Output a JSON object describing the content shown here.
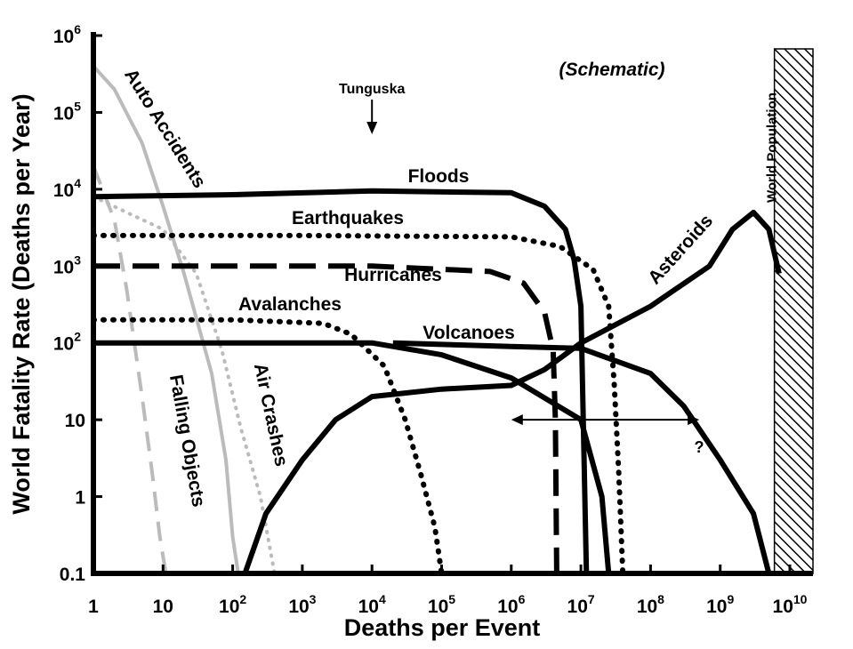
{
  "chart_data": {
    "type": "line",
    "title": "",
    "annotation_schematic": "(Schematic)",
    "xlabel": "Deaths per Event",
    "ylabel": "World Fatality Rate (Deaths per Year)",
    "x_scale": "log",
    "y_scale": "log",
    "xlim": [
      1,
      10000000000
    ],
    "ylim": [
      0.1,
      1000000
    ],
    "x_ticks": [
      {
        "value": 1,
        "base": "1",
        "exp": ""
      },
      {
        "value": 10,
        "base": "10",
        "exp": ""
      },
      {
        "value": 100,
        "base": "10",
        "exp": "2"
      },
      {
        "value": 1000,
        "base": "10",
        "exp": "3"
      },
      {
        "value": 10000,
        "base": "10",
        "exp": "4"
      },
      {
        "value": 100000,
        "base": "10",
        "exp": "5"
      },
      {
        "value": 1000000,
        "base": "10",
        "exp": "6"
      },
      {
        "value": 10000000,
        "base": "10",
        "exp": "7"
      },
      {
        "value": 100000000,
        "base": "10",
        "exp": "8"
      },
      {
        "value": 1000000000,
        "base": "10",
        "exp": "9"
      },
      {
        "value": 10000000000,
        "base": "10",
        "exp": "10"
      }
    ],
    "y_ticks": [
      {
        "value": 0.1,
        "base": "0.1",
        "exp": ""
      },
      {
        "value": 1,
        "base": "1",
        "exp": ""
      },
      {
        "value": 10,
        "base": "10",
        "exp": ""
      },
      {
        "value": 100,
        "base": "10",
        "exp": "2"
      },
      {
        "value": 1000,
        "base": "10",
        "exp": "3"
      },
      {
        "value": 10000,
        "base": "10",
        "exp": "4"
      },
      {
        "value": 100000,
        "base": "10",
        "exp": "5"
      },
      {
        "value": 1000000,
        "base": "10",
        "exp": "6"
      }
    ],
    "series": [
      {
        "name": "Auto Accidents",
        "style": "solid",
        "color": "#bbbbbb",
        "points": [
          [
            1,
            400000
          ],
          [
            2,
            200000
          ],
          [
            5,
            40000
          ],
          [
            10,
            6000
          ],
          [
            20,
            800
          ],
          [
            50,
            40
          ],
          [
            80,
            3
          ],
          [
            100,
            0.3
          ],
          [
            120,
            0.1
          ]
        ]
      },
      {
        "name": "Falling Objects",
        "style": "dashed",
        "color": "#bbbbbb",
        "points": [
          [
            1,
            20000
          ],
          [
            2,
            4000
          ],
          [
            3,
            500
          ],
          [
            5,
            20
          ],
          [
            7,
            2
          ],
          [
            9,
            0.3
          ],
          [
            11,
            0.1
          ]
        ]
      },
      {
        "name": "Air Crashes",
        "style": "dotted",
        "color": "#bbbbbb",
        "points": [
          [
            1,
            8000
          ],
          [
            3,
            5000
          ],
          [
            10,
            3000
          ],
          [
            30,
            800
          ],
          [
            70,
            80
          ],
          [
            130,
            8
          ],
          [
            250,
            1
          ],
          [
            400,
            0.1
          ]
        ]
      },
      {
        "name": "Floods",
        "style": "solid",
        "color": "#000000",
        "points": [
          [
            1,
            8000
          ],
          [
            100,
            8500
          ],
          [
            10000,
            9500
          ],
          [
            1000000,
            9000
          ],
          [
            3000000,
            6000
          ],
          [
            6000000,
            3000
          ],
          [
            8000000,
            1200
          ],
          [
            10000000,
            300
          ],
          [
            12000000,
            0.1
          ]
        ]
      },
      {
        "name": "Earthquakes",
        "style": "dotted",
        "color": "#000000",
        "points": [
          [
            1,
            2500
          ],
          [
            1000,
            2500
          ],
          [
            1000000,
            2400
          ],
          [
            5000000,
            1800
          ],
          [
            15000000,
            900
          ],
          [
            25000000,
            300
          ],
          [
            30000000,
            30
          ],
          [
            35000000,
            2
          ],
          [
            40000000,
            0.1
          ]
        ]
      },
      {
        "name": "Hurricanes",
        "style": "dashed",
        "color": "#000000",
        "points": [
          [
            1,
            1000
          ],
          [
            10000,
            1000
          ],
          [
            500000,
            850
          ],
          [
            1500000,
            600
          ],
          [
            3000000,
            250
          ],
          [
            4000000,
            80
          ],
          [
            4300000,
            10
          ],
          [
            4500000,
            0.1
          ]
        ]
      },
      {
        "name": "Avalanches",
        "style": "dotted",
        "color": "#000000",
        "points": [
          [
            1,
            200
          ],
          [
            100,
            200
          ],
          [
            2000,
            180
          ],
          [
            5000,
            130
          ],
          [
            15000,
            50
          ],
          [
            30000,
            10
          ],
          [
            50000,
            2
          ],
          [
            80000,
            0.4
          ],
          [
            100000,
            0.1
          ]
        ]
      },
      {
        "name": "Volcanoes",
        "style": "solid",
        "color": "#000000",
        "points": [
          [
            1,
            100
          ],
          [
            10000,
            100
          ],
          [
            100000,
            70
          ],
          [
            1000000,
            35
          ],
          [
            10000000,
            10
          ],
          [
            20000000,
            1
          ],
          [
            25000000,
            0.1
          ]
        ]
      },
      {
        "name": "Asteroids",
        "style": "solid",
        "color": "#000000",
        "points": [
          [
            150,
            0.1
          ],
          [
            300,
            0.6
          ],
          [
            1000,
            3
          ],
          [
            3000,
            10
          ],
          [
            10000,
            20
          ],
          [
            100000,
            25
          ],
          [
            1000000,
            28
          ],
          [
            3000000,
            45
          ],
          [
            10000000,
            100
          ],
          [
            100000000,
            300
          ],
          [
            700000000,
            1000
          ],
          [
            1500000000,
            3000
          ],
          [
            3000000000,
            5000
          ],
          [
            5000000000,
            3000
          ],
          [
            7000000000,
            800
          ]
        ]
      },
      {
        "name": "",
        "style": "solid",
        "color": "#000000",
        "points": [
          [
            20000,
            100
          ],
          [
            1000000,
            90
          ],
          [
            10000000,
            85
          ],
          [
            100000000,
            40
          ],
          [
            300000000,
            15
          ],
          [
            1000000000,
            3
          ],
          [
            3000000000,
            0.6
          ],
          [
            5000000000,
            0.1
          ]
        ]
      }
    ],
    "annotations": {
      "tunguska_label": "Tunguska",
      "tunguska_x": 10000,
      "range_arrow": {
        "x_start": 1000000,
        "x_end": 500000000,
        "y": 10
      },
      "question_mark": "?",
      "world_population_label": "World Population",
      "world_population_x": 6000000000
    },
    "grid": false,
    "legend": "none"
  }
}
